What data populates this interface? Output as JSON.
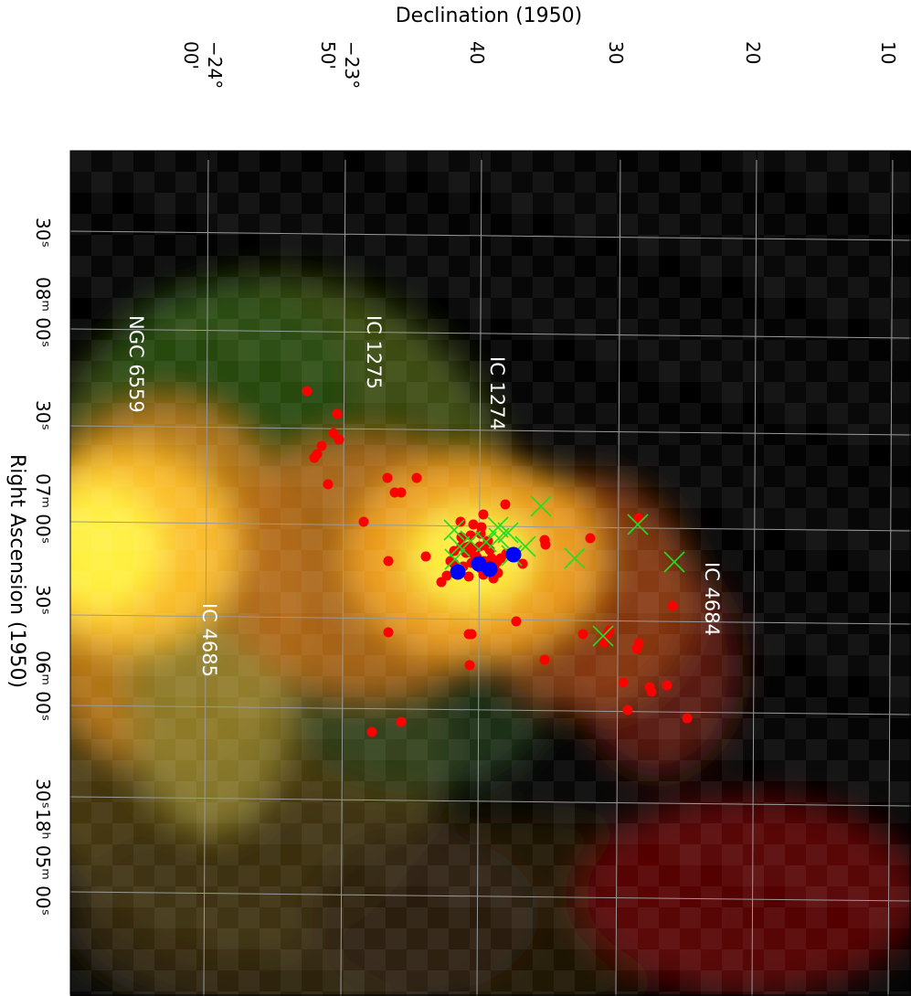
{
  "axes": {
    "top_title": "Declination (1950)",
    "left_title": "Right Ascension (1950)",
    "dec_ticks": [
      {
        "lines": [
          "−24°",
          "00'"
        ]
      },
      {
        "lines": [
          "−23°",
          "50'"
        ]
      },
      {
        "lines": [
          "40"
        ]
      },
      {
        "lines": [
          "30"
        ]
      },
      {
        "lines": [
          "20"
        ]
      },
      {
        "lines": [
          "10"
        ]
      }
    ],
    "ra_ticks": [
      {
        "text": "30ˢ"
      },
      {
        "text": "08ᵐ 00ˢ"
      },
      {
        "text": "30ˢ"
      },
      {
        "text": "07ᵐ 00ˢ"
      },
      {
        "text": "30ˢ"
      },
      {
        "text": "06ᵐ 00ˢ"
      },
      {
        "text": "30ˢ"
      },
      {
        "text": "18ʰ 05ᵐ 00ˢ"
      }
    ]
  },
  "labels": {
    "ngc6559": "NGC 6559",
    "ic1275": "IC 1275",
    "ic1274": "IC 1274",
    "ic4685": "IC 4685",
    "ic4684": "IC 4684"
  },
  "markers": {
    "red_color": "#ff0000",
    "blue_color": "#0000ff",
    "green_color": "#22dd22",
    "red_count": 78,
    "blue_count": 4,
    "green_count": 15
  },
  "colors": {
    "grid": "#9a9a9a",
    "background": "#000000"
  }
}
